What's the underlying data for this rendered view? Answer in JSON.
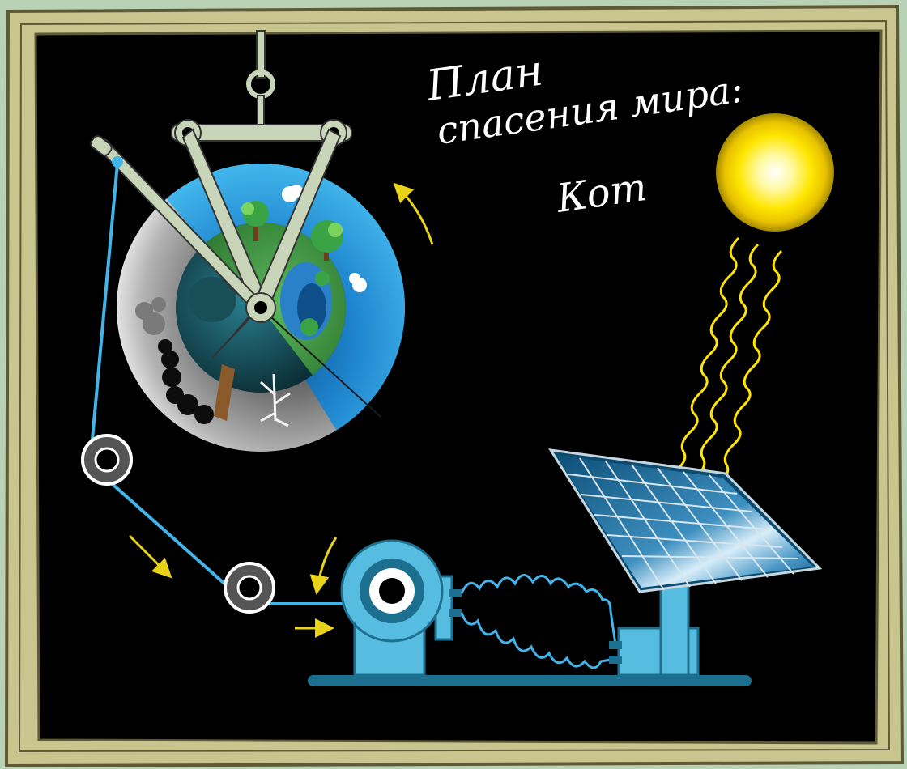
{
  "board": {
    "title_line1": "План",
    "title_line2": "спасения мира:",
    "signature": "Кот"
  },
  "colors": {
    "background": "#b9d1b5",
    "frame_fill": "#c9c58f",
    "frame_outline": "#5e5a36",
    "board": "#000000",
    "earth_sky": "#3fb1e6",
    "earth_land": "#2f7d32",
    "polluted_side": "#9a9a9a",
    "lever": "#c9d5b8",
    "rope": "#43b4e8",
    "machine": "#56bde0",
    "panel": "#1a6c97",
    "sun": "#ffef1a",
    "arrows": "#e8d21a"
  },
  "icons": [
    "earth-globe-icon",
    "lever-icon",
    "pulley-icon",
    "generator-icon",
    "solar-panel-icon",
    "sun-icon",
    "sun-ray-icon",
    "direction-arrow-icon"
  ]
}
